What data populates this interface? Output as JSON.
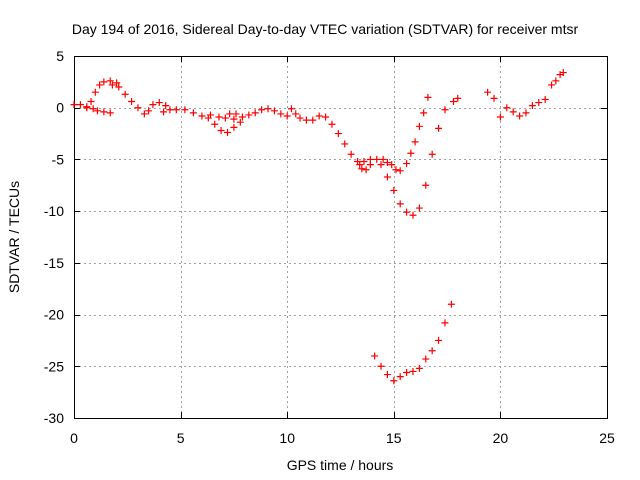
{
  "chart_data": {
    "type": "scatter",
    "title": "Day 194 of 2016, Sidereal Day-to-day VTEC variation (SDTVAR) for receiver mtsr",
    "xlabel": "GPS time / hours",
    "ylabel": "SDTVAR / TECUs",
    "xlim": [
      0,
      25
    ],
    "ylim": [
      -30,
      5
    ],
    "xticks": [
      0,
      5,
      10,
      15,
      20,
      25
    ],
    "yticks": [
      5,
      0,
      -5,
      -10,
      -15,
      -20,
      -25,
      -30
    ],
    "grid": true,
    "legend": "none",
    "marker": "plus",
    "color": "#ff0000",
    "series": [
      {
        "values": [
          [
            0.0,
            0.3
          ],
          [
            0.3,
            0.3
          ],
          [
            0.6,
            0.1
          ],
          [
            0.9,
            -0.1
          ],
          [
            1.1,
            -0.3
          ],
          [
            1.4,
            -0.4
          ],
          [
            1.7,
            -0.5
          ],
          [
            0.6,
            0.0
          ],
          [
            0.8,
            0.6
          ],
          [
            1.0,
            1.5
          ],
          [
            1.2,
            2.2
          ],
          [
            1.4,
            2.5
          ],
          [
            1.7,
            2.6
          ],
          [
            2.0,
            2.4
          ],
          [
            1.8,
            2.2
          ],
          [
            2.1,
            2.0
          ],
          [
            2.4,
            1.3
          ],
          [
            2.7,
            0.6
          ],
          [
            3.0,
            0.0
          ],
          [
            3.3,
            -0.6
          ],
          [
            3.5,
            -0.3
          ],
          [
            3.7,
            0.3
          ],
          [
            4.0,
            0.5
          ],
          [
            4.3,
            0.2
          ],
          [
            4.5,
            -0.2
          ],
          [
            4.2,
            -0.4
          ],
          [
            4.8,
            -0.2
          ],
          [
            5.2,
            -0.2
          ],
          [
            5.6,
            -0.5
          ],
          [
            6.0,
            -0.8
          ],
          [
            6.3,
            -1.0
          ],
          [
            6.6,
            -1.6
          ],
          [
            6.9,
            -2.2
          ],
          [
            7.2,
            -2.4
          ],
          [
            7.5,
            -1.9
          ],
          [
            7.8,
            -1.4
          ],
          [
            7.3,
            -0.6
          ],
          [
            7.6,
            -0.6
          ],
          [
            6.4,
            -0.7
          ],
          [
            6.8,
            -0.9
          ],
          [
            7.1,
            -1.0
          ],
          [
            7.5,
            -1.1
          ],
          [
            7.9,
            -0.9
          ],
          [
            8.2,
            -0.7
          ],
          [
            8.5,
            -0.5
          ],
          [
            8.8,
            -0.2
          ],
          [
            9.1,
            -0.1
          ],
          [
            9.4,
            -0.3
          ],
          [
            9.7,
            -0.6
          ],
          [
            10.0,
            -0.8
          ],
          [
            10.2,
            -0.1
          ],
          [
            10.4,
            -0.6
          ],
          [
            10.6,
            -1.0
          ],
          [
            10.9,
            -1.2
          ],
          [
            11.2,
            -1.2
          ],
          [
            11.5,
            -0.8
          ],
          [
            11.8,
            -0.9
          ],
          [
            12.1,
            -1.6
          ],
          [
            12.4,
            -2.5
          ],
          [
            12.7,
            -3.5
          ],
          [
            13.0,
            -4.5
          ],
          [
            13.3,
            -5.2
          ],
          [
            13.5,
            -5.9
          ],
          [
            13.7,
            -6.0
          ],
          [
            13.9,
            -5.5
          ],
          [
            13.4,
            -5.5
          ],
          [
            13.6,
            -5.2
          ],
          [
            13.9,
            -5.0
          ],
          [
            14.2,
            -5.0
          ],
          [
            14.5,
            -5.0
          ],
          [
            14.7,
            -5.3
          ],
          [
            14.9,
            -5.5
          ],
          [
            15.1,
            -6.0
          ],
          [
            15.3,
            -6.1
          ],
          [
            15.6,
            -5.4
          ],
          [
            15.8,
            -4.4
          ],
          [
            16.0,
            -3.3
          ],
          [
            16.2,
            -1.8
          ],
          [
            16.4,
            -0.5
          ],
          [
            16.6,
            1.0
          ],
          [
            14.4,
            -5.5
          ],
          [
            14.7,
            -6.7
          ],
          [
            15.0,
            -8.0
          ],
          [
            15.3,
            -9.3
          ],
          [
            15.6,
            -10.1
          ],
          [
            15.9,
            -10.4
          ],
          [
            16.2,
            -9.7
          ],
          [
            16.5,
            -7.5
          ],
          [
            16.8,
            -4.5
          ],
          [
            17.1,
            -2.0
          ],
          [
            17.4,
            -0.2
          ],
          [
            17.8,
            0.6
          ],
          [
            18.0,
            0.9
          ],
          [
            19.4,
            1.5
          ],
          [
            19.7,
            0.9
          ],
          [
            20.0,
            -0.9
          ],
          [
            20.3,
            0.0
          ],
          [
            20.6,
            -0.4
          ],
          [
            20.9,
            -0.8
          ],
          [
            21.2,
            -0.5
          ],
          [
            21.5,
            0.2
          ],
          [
            21.8,
            0.5
          ],
          [
            22.1,
            0.8
          ],
          [
            22.4,
            2.2
          ],
          [
            22.6,
            2.6
          ],
          [
            22.8,
            3.2
          ],
          [
            22.95,
            3.4
          ],
          [
            14.1,
            -24.0
          ],
          [
            14.4,
            -25.0
          ],
          [
            14.7,
            -25.8
          ],
          [
            15.0,
            -26.4
          ],
          [
            15.3,
            -26.0
          ],
          [
            15.6,
            -25.6
          ],
          [
            15.9,
            -25.5
          ],
          [
            16.2,
            -25.2
          ],
          [
            16.5,
            -24.3
          ],
          [
            16.8,
            -23.5
          ],
          [
            17.1,
            -22.5
          ],
          [
            17.4,
            -20.8
          ],
          [
            17.7,
            -19.0
          ]
        ]
      }
    ]
  }
}
